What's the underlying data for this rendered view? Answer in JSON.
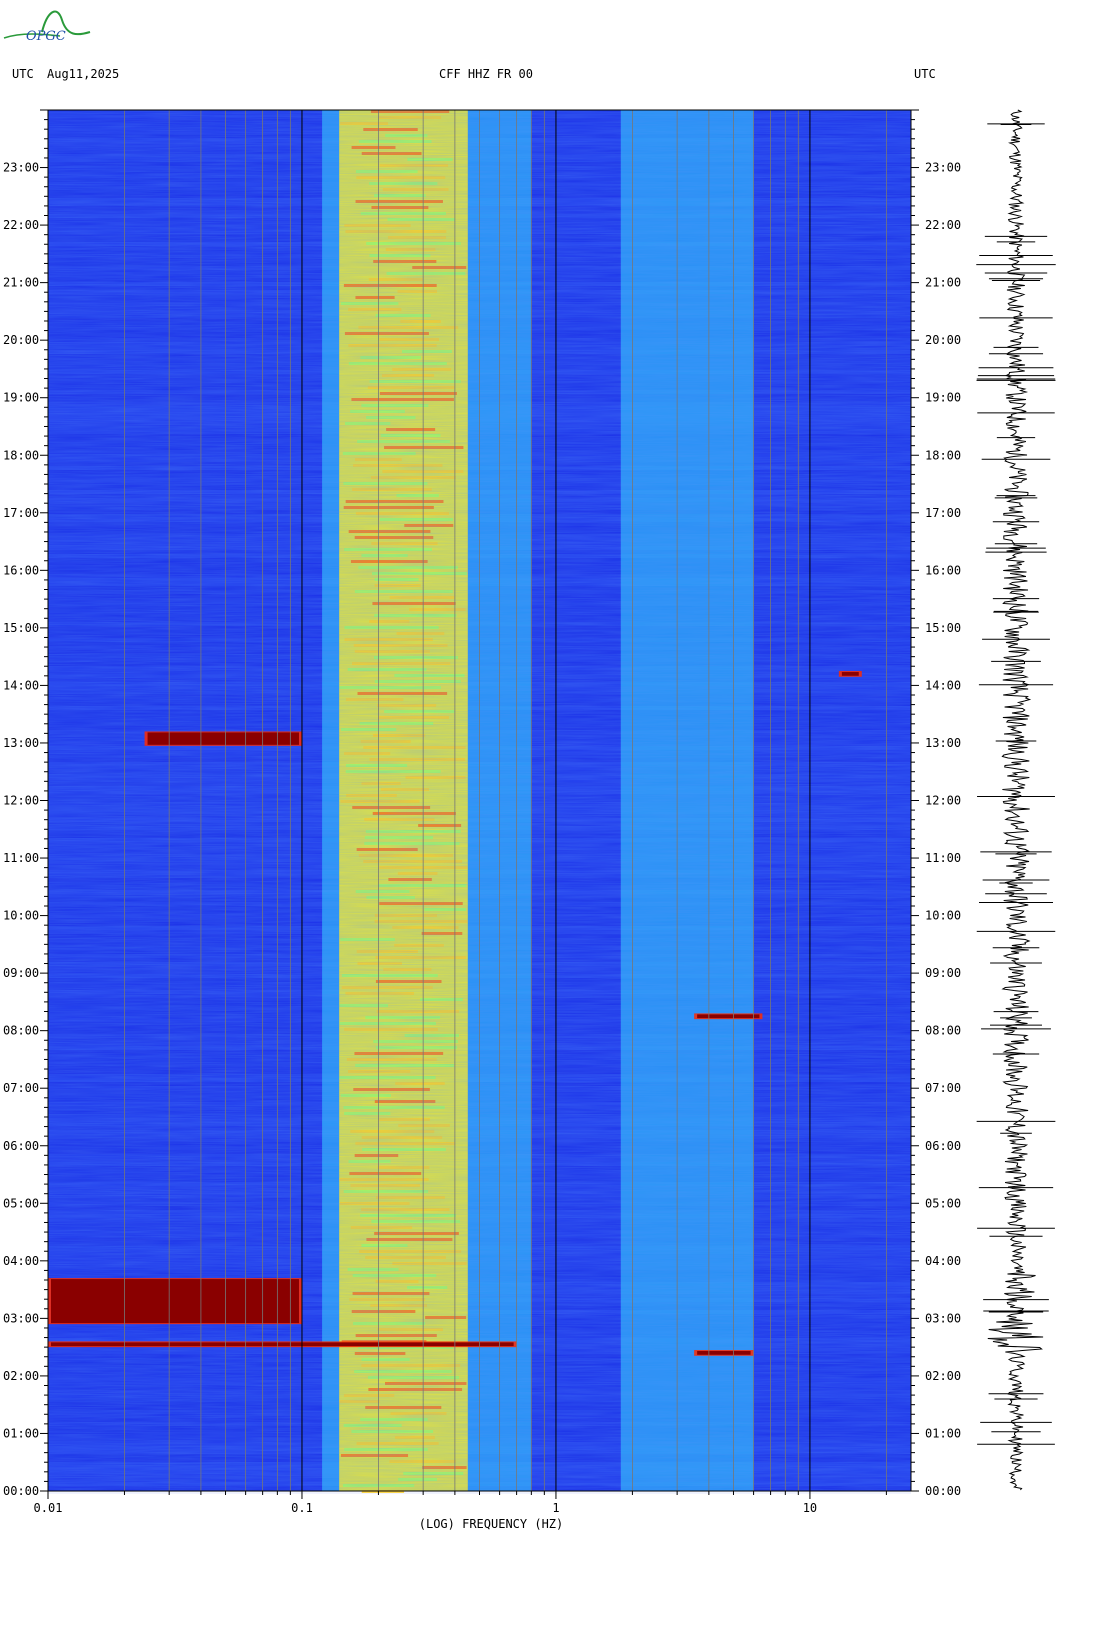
{
  "logo": {
    "text": "OPGC"
  },
  "header": {
    "left_tz": "UTC",
    "date": "Aug11,2025",
    "station": "CFF HHZ FR 00",
    "right_tz": "UTC"
  },
  "colors": {
    "background_blue": "#1a2fe8",
    "cyan": "#33e0ff",
    "yellow": "#f5f530",
    "red": "#8a0000",
    "waveform": "#000000"
  },
  "chart_data": {
    "type": "heatmap",
    "title": "CFF HHZ FR 00",
    "xlabel": "(LOG) FREQUENCY (HZ)",
    "x_scale": "log",
    "xlim": [
      0.01,
      25
    ],
    "x_ticks": [
      {
        "value": 0.01,
        "label": "0.01"
      },
      {
        "value": 0.1,
        "label": "0.1"
      },
      {
        "value": 1,
        "label": "1"
      },
      {
        "value": 10,
        "label": "10"
      }
    ],
    "ylabel": "UTC",
    "ylim_hours": [
      0,
      24
    ],
    "y_ticks": [
      {
        "hour": 0,
        "label": "00:00"
      },
      {
        "hour": 1,
        "label": "01:00"
      },
      {
        "hour": 2,
        "label": "02:00"
      },
      {
        "hour": 3,
        "label": "03:00"
      },
      {
        "hour": 4,
        "label": "04:00"
      },
      {
        "hour": 5,
        "label": "05:00"
      },
      {
        "hour": 6,
        "label": "06:00"
      },
      {
        "hour": 7,
        "label": "07:00"
      },
      {
        "hour": 8,
        "label": "08:00"
      },
      {
        "hour": 9,
        "label": "09:00"
      },
      {
        "hour": 10,
        "label": "10:00"
      },
      {
        "hour": 11,
        "label": "11:00"
      },
      {
        "hour": 12,
        "label": "12:00"
      },
      {
        "hour": 13,
        "label": "13:00"
      },
      {
        "hour": 14,
        "label": "14:00"
      },
      {
        "hour": 15,
        "label": "15:00"
      },
      {
        "hour": 16,
        "label": "16:00"
      },
      {
        "hour": 17,
        "label": "17:00"
      },
      {
        "hour": 18,
        "label": "18:00"
      },
      {
        "hour": 19,
        "label": "19:00"
      },
      {
        "hour": 20,
        "label": "20:00"
      },
      {
        "hour": 21,
        "label": "21:00"
      },
      {
        "hour": 22,
        "label": "22:00"
      },
      {
        "hour": 23,
        "label": "23:00"
      }
    ],
    "grid": true,
    "bands": [
      {
        "f_min": 0.14,
        "f_max": 0.45,
        "level": "high",
        "color": "yellow"
      },
      {
        "f_min": 0.45,
        "f_max": 0.8,
        "level": "medium",
        "color": "cyan"
      },
      {
        "f_min": 1.8,
        "f_max": 6,
        "level": "medium",
        "color": "cyan"
      }
    ],
    "events": [
      {
        "hour_start": 2.9,
        "hour_end": 3.7,
        "f_min": 0.01,
        "f_max": 0.1,
        "color": "red"
      },
      {
        "hour_start": 2.5,
        "hour_end": 2.6,
        "f_min": 0.01,
        "f_max": 0.7,
        "color": "red"
      },
      {
        "hour_start": 12.95,
        "hour_end": 13.2,
        "f_min": 0.024,
        "f_max": 0.1,
        "color": "red"
      },
      {
        "hour_start": 8.2,
        "hour_end": 8.3,
        "f_min": 3.5,
        "f_max": 6.5,
        "color": "red"
      },
      {
        "hour_start": 2.35,
        "hour_end": 2.45,
        "f_min": 3.5,
        "f_max": 6,
        "color": "red"
      },
      {
        "hour_start": 14.15,
        "hour_end": 14.25,
        "f_min": 13,
        "f_max": 16,
        "color": "red"
      }
    ]
  }
}
